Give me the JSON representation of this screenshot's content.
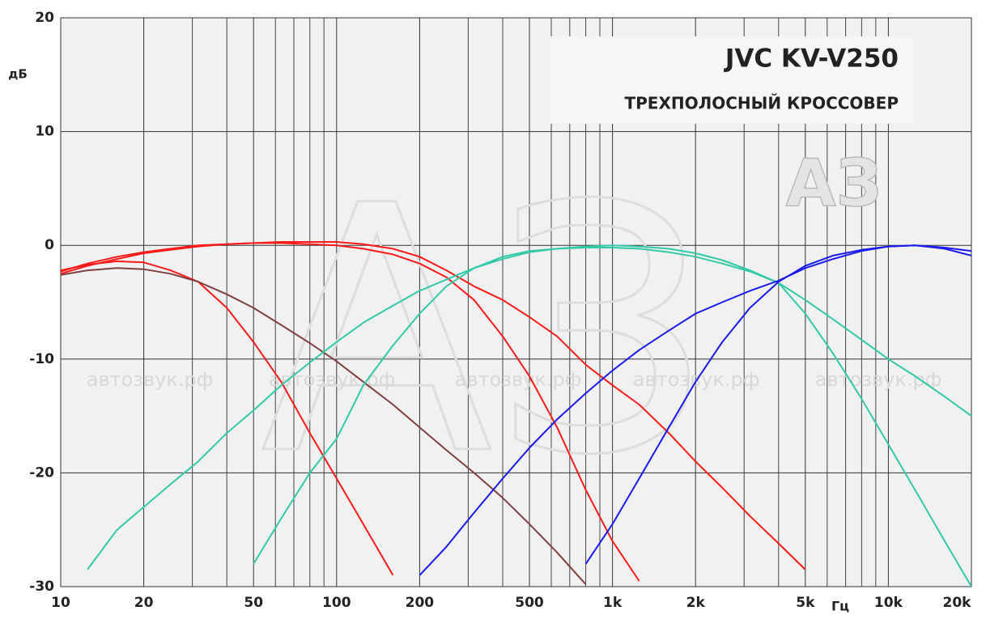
{
  "chart_data": {
    "type": "line",
    "title": "JVC KV-V250",
    "subtitle": "ТРЕХПОЛОСНЫЙ КРОССОВЕР",
    "y_label": "дБ",
    "x_label": "Гц",
    "watermark": "автозвук.рф",
    "logo": "АЗ",
    "log_x": true,
    "grid": true,
    "x": [
      10,
      12.5,
      16,
      20,
      25,
      31.5,
      40,
      50,
      63,
      80,
      100,
      125,
      160,
      200,
      250,
      315,
      400,
      500,
      630,
      800,
      1000,
      1250,
      1600,
      2000,
      2500,
      3150,
      4000,
      5000,
      6300,
      8000,
      10000,
      12500,
      16000,
      20000
    ],
    "series": [
      {
        "color": "#ff1a1a",
        "values": [
          -2.5,
          -1.8,
          -1.2,
          -0.7,
          -0.4,
          -0.1,
          0.1,
          0.2,
          0.3,
          0.3,
          0.3,
          0.1,
          -0.3,
          -1,
          -2.2,
          -3.6,
          -4.8,
          -6.3,
          -8,
          -10.5,
          -12.3,
          -14,
          -16.5,
          -19,
          -21.3,
          -23.8,
          -26.2,
          -28.5,
          null,
          null,
          null,
          null,
          null,
          null
        ]
      },
      {
        "color": "#ff1a1a",
        "values": [
          -2.3,
          -1.6,
          -1,
          -0.6,
          -0.3,
          0,
          0.1,
          0.2,
          0.2,
          0.1,
          0,
          -0.3,
          -0.8,
          -1.6,
          -2.8,
          -4.8,
          -8,
          -11.5,
          -16,
          -21.5,
          -26,
          -29.5,
          null,
          null,
          null,
          null,
          null,
          null,
          null,
          null,
          null,
          null,
          null,
          null
        ]
      },
      {
        "color": "#ff1a1a",
        "values": [
          -2.2,
          -1.7,
          -1.4,
          -1.5,
          -2.2,
          -3.2,
          -5.5,
          -8.5,
          -12,
          -16.5,
          -20.5,
          -24.5,
          -29,
          null,
          null,
          null,
          null,
          null,
          null,
          null,
          null,
          null,
          null,
          null,
          null,
          null,
          null,
          null,
          null,
          null,
          null,
          null,
          null,
          null
        ]
      },
      {
        "color": "#804040",
        "values": [
          -2.6,
          -2.2,
          -2,
          -2.1,
          -2.5,
          -3.2,
          -4.3,
          -5.5,
          -7,
          -8.6,
          -10.2,
          -12,
          -14,
          -16,
          -18,
          -20,
          -22.2,
          -24.5,
          -27,
          -29.8,
          null,
          null,
          null,
          null,
          null,
          null,
          null,
          null,
          null,
          null,
          null,
          null,
          null,
          null
        ]
      },
      {
        "color": "#33c9a6",
        "values": [
          null,
          -28.5,
          -25,
          -23,
          -21,
          -19,
          -16.5,
          -14.5,
          -12.3,
          -10.3,
          -8.5,
          -6.8,
          -5.3,
          -4,
          -3,
          -2,
          -1.2,
          -0.6,
          -0.3,
          -0.1,
          0,
          -0.1,
          -0.3,
          -0.7,
          -1.3,
          -2.2,
          -3.3,
          -4.8,
          -6.5,
          -8.3,
          -10,
          -11.5,
          -13.3,
          -15
        ]
      },
      {
        "color": "#33c9a6",
        "values": [
          null,
          null,
          null,
          null,
          null,
          null,
          null,
          -28,
          -24,
          -20,
          -17,
          -12.3,
          -8.8,
          -6,
          -3.6,
          -2,
          -1,
          -0.5,
          -0.3,
          -0.2,
          -0.2,
          -0.3,
          -0.6,
          -1,
          -1.6,
          -2.3,
          -3.3,
          -6,
          -9.5,
          -13.5,
          -17.5,
          -21.5,
          -26,
          -30
        ]
      },
      {
        "color": "#1a1aee",
        "values": [
          null,
          null,
          null,
          null,
          null,
          null,
          null,
          null,
          null,
          null,
          null,
          null,
          null,
          -29,
          -26.5,
          -23.5,
          -20.5,
          -17.8,
          -15.3,
          -13,
          -11,
          -9.2,
          -7.5,
          -6,
          -5,
          -4,
          -3.1,
          -2,
          -1.2,
          -0.5,
          -0.1,
          0,
          -0.2,
          -0.5
        ]
      },
      {
        "color": "#1a1aee",
        "values": [
          null,
          null,
          null,
          null,
          null,
          null,
          null,
          null,
          null,
          null,
          null,
          null,
          null,
          null,
          null,
          null,
          null,
          null,
          null,
          -28,
          -24.5,
          -20.5,
          -16,
          -12,
          -8.5,
          -5.5,
          -3.2,
          -1.8,
          -0.9,
          -0.4,
          -0.1,
          0,
          -0.3,
          -0.9
        ]
      }
    ],
    "xlim": [
      10,
      20000
    ],
    "xticks": [
      10,
      20,
      50,
      100,
      200,
      500,
      {
        "value": 1000,
        "label": "1k"
      },
      {
        "value": 2000,
        "label": "2k"
      },
      {
        "value": 5000,
        "label": "5k"
      },
      {
        "value": 10000,
        "label": "10k"
      },
      {
        "value": 20000,
        "label": "20k"
      }
    ],
    "xminor_ticks": [
      30,
      40,
      60,
      70,
      80,
      90,
      300,
      400,
      600,
      700,
      800,
      900,
      3000,
      4000,
      6000,
      7000,
      8000,
      9000
    ],
    "ylim": [
      -30,
      20
    ],
    "yticks": [
      -30,
      -20,
      -10,
      0,
      10,
      20
    ]
  }
}
